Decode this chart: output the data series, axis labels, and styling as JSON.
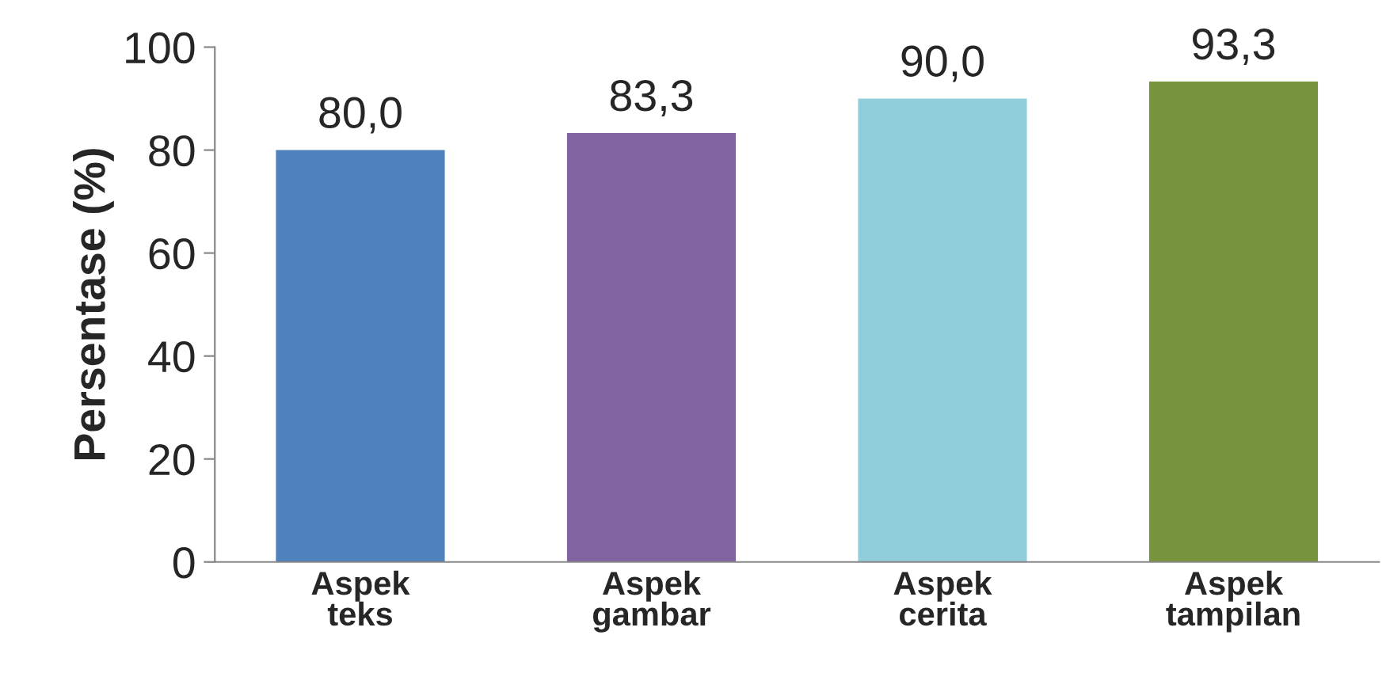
{
  "chart_data": {
    "type": "bar",
    "ylabel": "Persentase (%)",
    "categories": [
      "Aspek\nteks",
      "Aspek\ngambar",
      "Aspek\ncerita",
      "Aspek\ntampilan"
    ],
    "values": [
      80.0,
      83.3,
      90.0,
      93.3
    ],
    "value_labels": [
      "80,0",
      "83,3",
      "90,0",
      "93,3"
    ],
    "colors": [
      "#4f81bd",
      "#8064a2",
      "#92cddc",
      "#77933c"
    ],
    "ylim": [
      0,
      100
    ],
    "yticks": [
      0,
      20,
      40,
      60,
      80,
      100
    ],
    "grid": false,
    "legend": false
  }
}
